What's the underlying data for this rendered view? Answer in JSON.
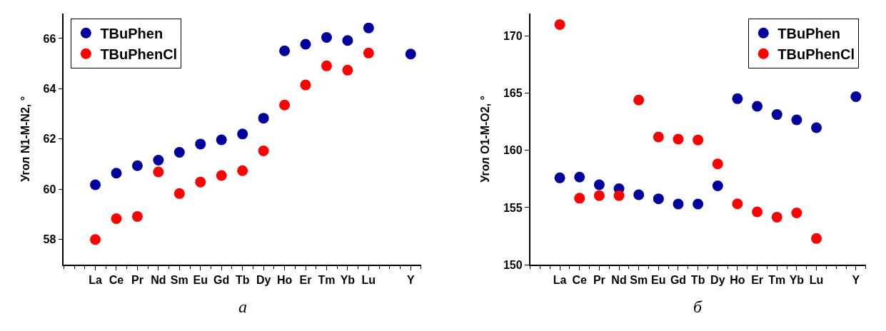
{
  "chart_data": [
    {
      "type": "scatter",
      "ylabel": "Угол N1-M-N2, °",
      "categories": [
        "La",
        "Ce",
        "Pr",
        "Nd",
        "Sm",
        "Eu",
        "Gd",
        "Tb",
        "Dy",
        "Ho",
        "Er",
        "Tm",
        "Yb",
        "Lu",
        null,
        "Y"
      ],
      "ylim": [
        57,
        67
      ],
      "yticks": [
        58,
        60,
        62,
        64,
        66
      ],
      "legend": "top left",
      "marker": "circle",
      "annotations": [
        "а"
      ],
      "series": [
        {
          "name": "TBuPhen",
          "color": "#00009c",
          "values": [
            60.18,
            60.64,
            60.94,
            61.16,
            61.47,
            61.8,
            61.97,
            62.2,
            62.83,
            65.51,
            65.77,
            66.04,
            65.92,
            66.42,
            null,
            65.38
          ]
        },
        {
          "name": "TBuPhenCl",
          "color": "#ff0000",
          "values": [
            58.0,
            58.83,
            58.92,
            60.69,
            59.83,
            60.29,
            60.55,
            60.74,
            61.53,
            63.35,
            64.15,
            64.91,
            64.74,
            65.42,
            null,
            null
          ]
        }
      ]
    },
    {
      "type": "scatter",
      "ylabel": "Угол O1-M-O2, °",
      "categories": [
        "La",
        "Ce",
        "Pr",
        "Nd",
        "Sm",
        "Eu",
        "Gd",
        "Tb",
        "Dy",
        "Ho",
        "Er",
        "Tm",
        "Yb",
        "Lu",
        null,
        "Y"
      ],
      "ylim": [
        150,
        172
      ],
      "yticks": [
        150,
        155,
        160,
        165,
        170
      ],
      "legend": "top right",
      "marker": "circle",
      "annotations": [
        "б"
      ],
      "series": [
        {
          "name": "TBuPhen",
          "color": "#00009c",
          "values": [
            157.6,
            157.67,
            157.0,
            156.65,
            156.12,
            155.77,
            155.31,
            155.31,
            156.9,
            164.53,
            163.86,
            163.14,
            162.68,
            161.99,
            null,
            164.71
          ]
        },
        {
          "name": "TBuPhenCl",
          "color": "#ff0000",
          "values": [
            171.02,
            155.82,
            156.05,
            156.05,
            164.41,
            161.18,
            160.99,
            160.92,
            158.82,
            155.33,
            154.62,
            154.16,
            154.53,
            152.29,
            null,
            null
          ]
        }
      ]
    }
  ]
}
